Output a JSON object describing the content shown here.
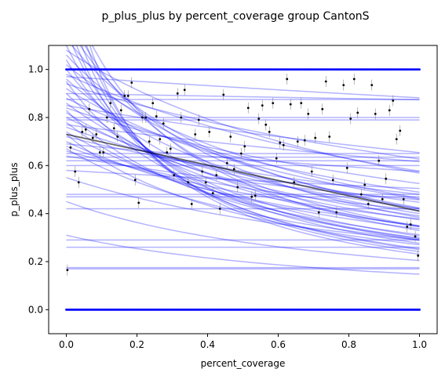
{
  "chart_data": {
    "type": "scatter",
    "title": "p_plus_plus by percent_coverage group CantonS",
    "xlabel": "percent_coverage",
    "ylabel": "p_plus_plus",
    "xlim": [
      -0.05,
      1.05
    ],
    "ylim": [
      -0.1,
      1.1
    ],
    "xticks": [
      0.0,
      0.2,
      0.4,
      0.6,
      0.8,
      1.0
    ],
    "xtick_labels": [
      "0.0",
      "0.2",
      "0.4",
      "0.6",
      "0.8",
      "1.0"
    ],
    "yticks": [
      0.0,
      0.2,
      0.4,
      0.6,
      0.8,
      1.0
    ],
    "ytick_labels": [
      "0.0",
      "0.2",
      "0.4",
      "0.6",
      "0.8",
      "1.0"
    ],
    "grid": false,
    "colors": {
      "fit_lines": "#0000ff",
      "fit_line_opacity": 0.3,
      "mean_line": "#000000",
      "points": "#000000",
      "boundary_points": "#0000ff",
      "error_bars": "#888888"
    },
    "mean_line": {
      "x": [
        0.0,
        1.0
      ],
      "y": [
        0.73,
        0.41
      ]
    },
    "fit_lines": [
      {
        "y0": 0.17,
        "k": 0
      },
      {
        "y0": 0.175,
        "k": 0
      },
      {
        "y0": 0.26,
        "k": 0
      },
      {
        "y0": 0.29,
        "k": 0
      },
      {
        "y0": 0.42,
        "k": 0
      },
      {
        "y0": 0.47,
        "k": 0
      },
      {
        "y0": 0.48,
        "k": 0
      },
      {
        "y0": 0.6,
        "k": 0
      },
      {
        "y0": 0.62,
        "k": 0
      },
      {
        "y0": 0.635,
        "k": 0
      },
      {
        "y0": 0.65,
        "k": 0
      },
      {
        "y0": 0.79,
        "k": 0
      },
      {
        "y0": 0.8,
        "k": 0
      },
      {
        "y0": 0.875,
        "k": 0
      },
      {
        "y0": 0.9,
        "k": 0.03
      },
      {
        "y0": 0.97,
        "k": 0.1
      },
      {
        "y0": 0.31,
        "k": 1.1
      },
      {
        "y0": 0.45,
        "k": 1.2
      },
      {
        "y0": 0.55,
        "k": 0.9
      },
      {
        "y0": 0.64,
        "k": 0.4
      },
      {
        "y0": 0.66,
        "k": 0.6
      },
      {
        "y0": 0.68,
        "k": 0.8
      },
      {
        "y0": 0.7,
        "k": 1.0
      },
      {
        "y0": 0.72,
        "k": 0.5
      },
      {
        "y0": 0.74,
        "k": 1.2
      },
      {
        "y0": 0.76,
        "k": 0.7
      },
      {
        "y0": 0.78,
        "k": 1.5
      },
      {
        "y0": 0.8,
        "k": 0.9
      },
      {
        "y0": 0.82,
        "k": 1.1
      },
      {
        "y0": 0.84,
        "k": 0.6
      },
      {
        "y0": 0.86,
        "k": 1.3
      },
      {
        "y0": 0.88,
        "k": 0.8
      },
      {
        "y0": 0.9,
        "k": 1.6
      },
      {
        "y0": 0.92,
        "k": 1.0
      },
      {
        "y0": 0.94,
        "k": 0.5
      },
      {
        "y0": 0.96,
        "k": 1.4
      },
      {
        "y0": 0.98,
        "k": 0.7
      },
      {
        "y0": 1.0,
        "k": 1.9
      },
      {
        "y0": 1.02,
        "k": 1.2
      },
      {
        "y0": 1.04,
        "k": 2.4
      },
      {
        "y0": 1.06,
        "k": 1.5
      },
      {
        "y0": 1.08,
        "k": 0.9
      },
      {
        "y0": 1.1,
        "k": 2.8
      },
      {
        "y0": 1.13,
        "k": 1.7
      },
      {
        "y0": 1.16,
        "k": 3.2
      },
      {
        "y0": 1.19,
        "k": 2.1
      },
      {
        "y0": 1.22,
        "k": 3.8
      },
      {
        "y0": 1.25,
        "k": 2.6
      },
      {
        "y0": 1.3,
        "k": 4.2
      },
      {
        "y0": 1.35,
        "k": 3.1
      },
      {
        "y0": 1.4,
        "k": 4.8
      },
      {
        "y0": 1.5,
        "k": 5.5
      },
      {
        "y0": 0.85,
        "k": 0.3
      },
      {
        "y0": 0.77,
        "k": 0.25
      },
      {
        "y0": 0.69,
        "k": 0.2
      },
      {
        "y0": 0.58,
        "k": 0.15
      },
      {
        "y0": 0.83,
        "k": 1.8
      },
      {
        "y0": 0.95,
        "k": 2.2
      },
      {
        "y0": 0.73,
        "k": 1.7
      },
      {
        "y0": 0.67,
        "k": 1.3
      }
    ],
    "points": [
      {
        "x": 0.003,
        "y": 0.165
      },
      {
        "x": 0.012,
        "y": 0.675
      },
      {
        "x": 0.025,
        "y": 0.575
      },
      {
        "x": 0.035,
        "y": 0.53
      },
      {
        "x": 0.045,
        "y": 0.74
      },
      {
        "x": 0.055,
        "y": 0.75
      },
      {
        "x": 0.065,
        "y": 0.835
      },
      {
        "x": 0.075,
        "y": 0.715
      },
      {
        "x": 0.085,
        "y": 0.73
      },
      {
        "x": 0.095,
        "y": 0.655
      },
      {
        "x": 0.105,
        "y": 0.655
      },
      {
        "x": 0.115,
        "y": 0.8
      },
      {
        "x": 0.125,
        "y": 0.86
      },
      {
        "x": 0.135,
        "y": 0.755
      },
      {
        "x": 0.145,
        "y": 0.72
      },
      {
        "x": 0.155,
        "y": 0.83
      },
      {
        "x": 0.165,
        "y": 0.89
      },
      {
        "x": 0.175,
        "y": 0.89
      },
      {
        "x": 0.185,
        "y": 0.945
      },
      {
        "x": 0.195,
        "y": 0.54
      },
      {
        "x": 0.205,
        "y": 0.445
      },
      {
        "x": 0.215,
        "y": 0.8
      },
      {
        "x": 0.225,
        "y": 0.8
      },
      {
        "x": 0.235,
        "y": 0.7
      },
      {
        "x": 0.245,
        "y": 0.86
      },
      {
        "x": 0.255,
        "y": 0.805
      },
      {
        "x": 0.265,
        "y": 0.71
      },
      {
        "x": 0.275,
        "y": 0.775
      },
      {
        "x": 0.285,
        "y": 0.655
      },
      {
        "x": 0.295,
        "y": 0.67
      },
      {
        "x": 0.305,
        "y": 0.56
      },
      {
        "x": 0.315,
        "y": 0.9
      },
      {
        "x": 0.325,
        "y": 0.8
      },
      {
        "x": 0.335,
        "y": 0.915
      },
      {
        "x": 0.345,
        "y": 0.53
      },
      {
        "x": 0.355,
        "y": 0.44
      },
      {
        "x": 0.365,
        "y": 0.73
      },
      {
        "x": 0.375,
        "y": 0.79
      },
      {
        "x": 0.385,
        "y": 0.575
      },
      {
        "x": 0.395,
        "y": 0.53
      },
      {
        "x": 0.405,
        "y": 0.74
      },
      {
        "x": 0.415,
        "y": 0.485
      },
      {
        "x": 0.425,
        "y": 0.56
      },
      {
        "x": 0.435,
        "y": 0.42
      },
      {
        "x": 0.445,
        "y": 0.895
      },
      {
        "x": 0.455,
        "y": 0.61
      },
      {
        "x": 0.465,
        "y": 0.72
      },
      {
        "x": 0.475,
        "y": 0.585
      },
      {
        "x": 0.485,
        "y": 0.51
      },
      {
        "x": 0.495,
        "y": 0.65
      },
      {
        "x": 0.505,
        "y": 0.68
      },
      {
        "x": 0.515,
        "y": 0.84
      },
      {
        "x": 0.525,
        "y": 0.47
      },
      {
        "x": 0.535,
        "y": 0.475
      },
      {
        "x": 0.545,
        "y": 0.795
      },
      {
        "x": 0.555,
        "y": 0.85
      },
      {
        "x": 0.565,
        "y": 0.77
      },
      {
        "x": 0.575,
        "y": 0.74
      },
      {
        "x": 0.585,
        "y": 0.86
      },
      {
        "x": 0.595,
        "y": 0.63
      },
      {
        "x": 0.605,
        "y": 0.695
      },
      {
        "x": 0.615,
        "y": 0.685
      },
      {
        "x": 0.625,
        "y": 0.96
      },
      {
        "x": 0.635,
        "y": 0.855
      },
      {
        "x": 0.645,
        "y": 0.53
      },
      {
        "x": 0.655,
        "y": 0.7
      },
      {
        "x": 0.665,
        "y": 0.86
      },
      {
        "x": 0.675,
        "y": 0.705
      },
      {
        "x": 0.685,
        "y": 0.815
      },
      {
        "x": 0.695,
        "y": 0.575
      },
      {
        "x": 0.705,
        "y": 0.715
      },
      {
        "x": 0.715,
        "y": 0.405
      },
      {
        "x": 0.725,
        "y": 0.835
      },
      {
        "x": 0.735,
        "y": 0.95
      },
      {
        "x": 0.745,
        "y": 0.72
      },
      {
        "x": 0.755,
        "y": 0.54
      },
      {
        "x": 0.765,
        "y": 0.405
      },
      {
        "x": 0.785,
        "y": 0.935
      },
      {
        "x": 0.795,
        "y": 0.59
      },
      {
        "x": 0.805,
        "y": 0.795
      },
      {
        "x": 0.815,
        "y": 0.96
      },
      {
        "x": 0.825,
        "y": 0.82
      },
      {
        "x": 0.835,
        "y": 0.48
      },
      {
        "x": 0.845,
        "y": 0.52
      },
      {
        "x": 0.855,
        "y": 0.44
      },
      {
        "x": 0.865,
        "y": 0.935
      },
      {
        "x": 0.875,
        "y": 0.815
      },
      {
        "x": 0.885,
        "y": 0.62
      },
      {
        "x": 0.895,
        "y": 0.46
      },
      {
        "x": 0.905,
        "y": 0.545
      },
      {
        "x": 0.915,
        "y": 0.83
      },
      {
        "x": 0.925,
        "y": 0.87
      },
      {
        "x": 0.935,
        "y": 0.71
      },
      {
        "x": 0.945,
        "y": 0.745
      },
      {
        "x": 0.955,
        "y": 0.46
      },
      {
        "x": 0.965,
        "y": 0.345
      },
      {
        "x": 0.975,
        "y": 0.355
      },
      {
        "x": 0.988,
        "y": 0.305
      },
      {
        "x": 0.996,
        "y": 0.225
      }
    ]
  }
}
